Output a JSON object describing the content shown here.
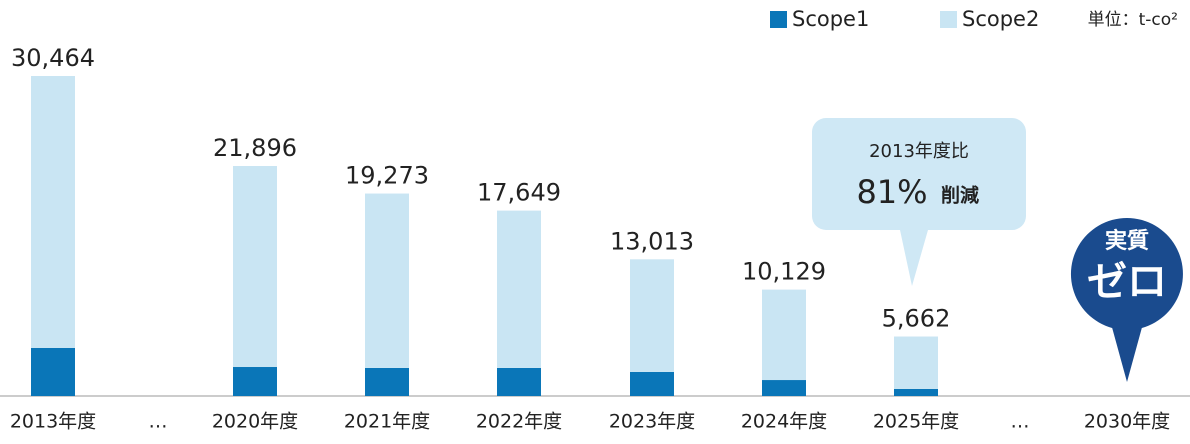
{
  "chart_data": {
    "type": "stacked_bar",
    "categories": [
      "2013年度",
      "…",
      "2020年度",
      "2021年度",
      "2022年度",
      "2023年度",
      "2024年度",
      "2025年度",
      "…",
      "2030年度"
    ],
    "series": [
      {
        "name": "Scope1",
        "color": "#0a76b8",
        "values": [
          4570,
          null,
          2760,
          2670,
          2670,
          2290,
          1520,
          670,
          null,
          null
        ]
      },
      {
        "name": "Scope2",
        "color": "#c9e5f3",
        "values": [
          25894,
          null,
          19136,
          16603,
          14979,
          10723,
          8609,
          4992,
          null,
          null
        ]
      }
    ],
    "totals": [
      30464,
      null,
      21896,
      19273,
      17649,
      13013,
      10129,
      5662,
      null,
      null
    ],
    "total_labels": [
      "30,464",
      null,
      "21,896",
      "19,273",
      "17,649",
      "13,013",
      "10,129",
      "5,662",
      null,
      null
    ],
    "unit": "単位：t-co²",
    "callout": {
      "line1": "2013年度比",
      "percent": "81%",
      "text": "削減"
    },
    "target": {
      "line1": "実質",
      "line2": "ゼロ"
    }
  }
}
